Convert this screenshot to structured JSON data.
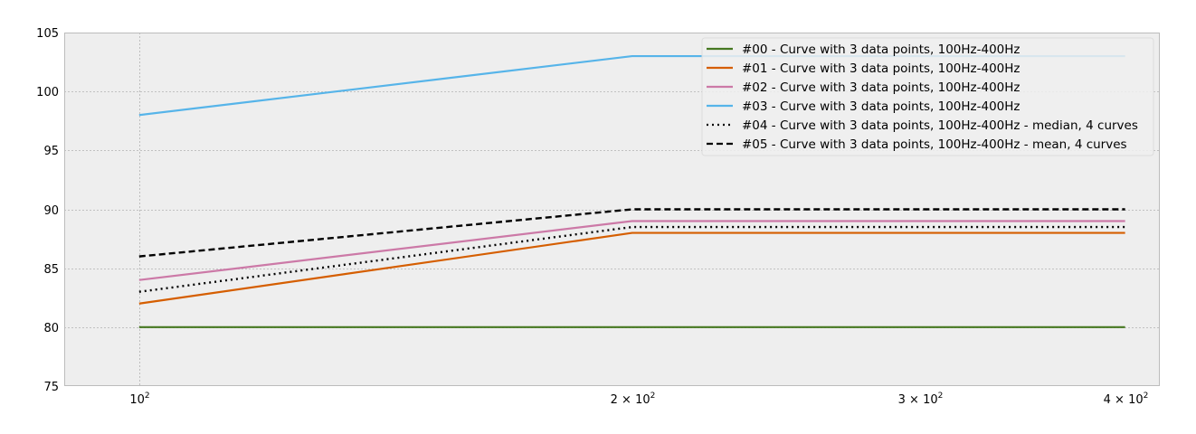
{
  "chart_data": {
    "type": "line",
    "title": "",
    "xlabel": "",
    "ylabel": "",
    "x_scale": "log",
    "x": [
      100,
      200,
      400
    ],
    "xlim": [
      90,
      420
    ],
    "ylim": [
      75,
      105
    ],
    "y_ticks": [
      75,
      80,
      85,
      90,
      95,
      100,
      105
    ],
    "y_tick_labels": [
      "75",
      "80",
      "85",
      "90",
      "95",
      "100",
      "105"
    ],
    "x_ticks": [
      100,
      200,
      300,
      400
    ],
    "x_tick_labels": [
      {
        "base": "10",
        "exp": "2"
      },
      {
        "base": "2 × 10",
        "exp": "2"
      },
      {
        "base": "3 × 10",
        "exp": "2"
      },
      {
        "base": "4 × 10",
        "exp": "2"
      }
    ],
    "grid": true,
    "background": "#eeeeee",
    "legend_position": "top-right",
    "series": [
      {
        "name": "#00 - Curve with 3 data points, 100Hz-400Hz",
        "values": [
          80,
          80,
          80
        ],
        "color": "#467821",
        "style": "solid"
      },
      {
        "name": "#01 - Curve with 3 data points, 100Hz-400Hz",
        "values": [
          82,
          88,
          88
        ],
        "color": "#d55e00",
        "style": "solid"
      },
      {
        "name": "#02 - Curve with 3 data points, 100Hz-400Hz",
        "values": [
          84,
          89,
          89
        ],
        "color": "#cc79a7",
        "style": "solid"
      },
      {
        "name": "#03 - Curve with 3 data points, 100Hz-400Hz",
        "values": [
          98,
          103,
          103
        ],
        "color": "#56b4e9",
        "style": "solid"
      },
      {
        "name": "#04 - Curve with 3 data points, 100Hz-400Hz - median, 4 curves",
        "values": [
          83,
          88.5,
          88.5
        ],
        "color": "#000000",
        "style": "dotted"
      },
      {
        "name": "#05 - Curve with 3 data points, 100Hz-400Hz - mean, 4 curves",
        "values": [
          86,
          90,
          90
        ],
        "color": "#000000",
        "style": "dashed"
      }
    ]
  }
}
